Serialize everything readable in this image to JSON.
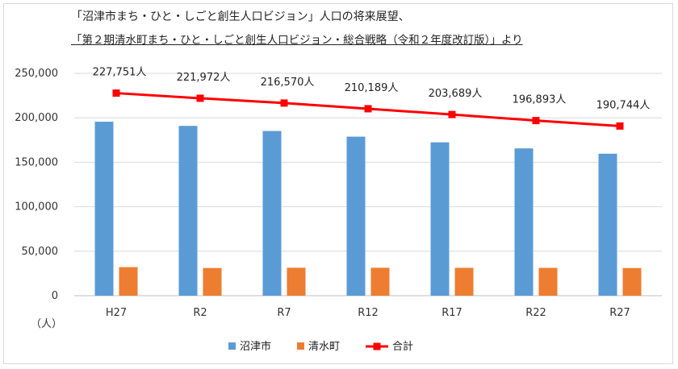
{
  "titles": {
    "line1": "「沼津市まち・ひと・しごと創生人口ビジョン」人口の将来展望、",
    "line2": "「第２期清水町まち・ひと・しごと創生人口ビジョン・総合戦略（令和２年度改訂版）」より"
  },
  "chart_data": {
    "type": "bar",
    "categories": [
      "H27",
      "R2",
      "R7",
      "R12",
      "R17",
      "R22",
      "R27"
    ],
    "series": [
      {
        "name": "沼津市",
        "type": "bar",
        "color": "#5b9bd5",
        "values": [
          195600,
          190900,
          185200,
          178800,
          172400,
          165600,
          159600
        ]
      },
      {
        "name": "清水町",
        "type": "bar",
        "color": "#ed7d31",
        "values": [
          32100,
          31100,
          31400,
          31400,
          31300,
          31300,
          31100
        ]
      },
      {
        "name": "合計",
        "type": "line",
        "color": "#ff0000",
        "values": [
          227751,
          221972,
          216570,
          210189,
          203689,
          196893,
          190744
        ],
        "data_labels": [
          "227,751人",
          "221,972人",
          "216,570人",
          "210,189人",
          "203,689人",
          "196,893人",
          "190,744人"
        ]
      }
    ],
    "y_ticks": [
      "0",
      "50,000",
      "100,000",
      "150,000",
      "200,000",
      "250,000"
    ],
    "y_tick_values": [
      0,
      50000,
      100000,
      150000,
      200000,
      250000
    ],
    "ylim": [
      0,
      250000
    ],
    "unit_label": "（人）",
    "grid": true,
    "legend_position": "bottom"
  }
}
